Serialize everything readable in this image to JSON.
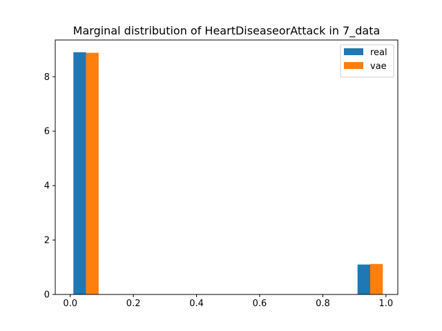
{
  "chart_data": {
    "type": "bar",
    "title": "Marginal distribution of HeartDiseaseorAttack in 7_data",
    "xlabel": "",
    "ylabel": "",
    "xlim": [
      -0.0475,
      1.0375
    ],
    "ylim": [
      0,
      9.35
    ],
    "x_ticks": [
      0.0,
      0.2,
      0.4,
      0.6,
      0.8,
      1.0
    ],
    "x_tick_labels": [
      "0.0",
      "0.2",
      "0.4",
      "0.6",
      "0.8",
      "1.0"
    ],
    "y_ticks": [
      0,
      2,
      4,
      6,
      8
    ],
    "y_tick_labels": [
      "0",
      "2",
      "4",
      "6",
      "8"
    ],
    "bin_edges": [
      0.01,
      0.05,
      0.09,
      0.91,
      0.95,
      0.99
    ],
    "series": [
      {
        "name": "real",
        "color": "#1f77b4",
        "bins": [
          [
            0.01,
            0.05,
            8.9
          ],
          [
            0.91,
            0.95,
            1.1
          ]
        ]
      },
      {
        "name": "vae",
        "color": "#ff7f0e",
        "bins": [
          [
            0.05,
            0.09,
            8.88
          ],
          [
            0.95,
            0.99,
            1.12
          ]
        ]
      }
    ],
    "legend": {
      "placement": "top-right"
    },
    "grid": false
  }
}
